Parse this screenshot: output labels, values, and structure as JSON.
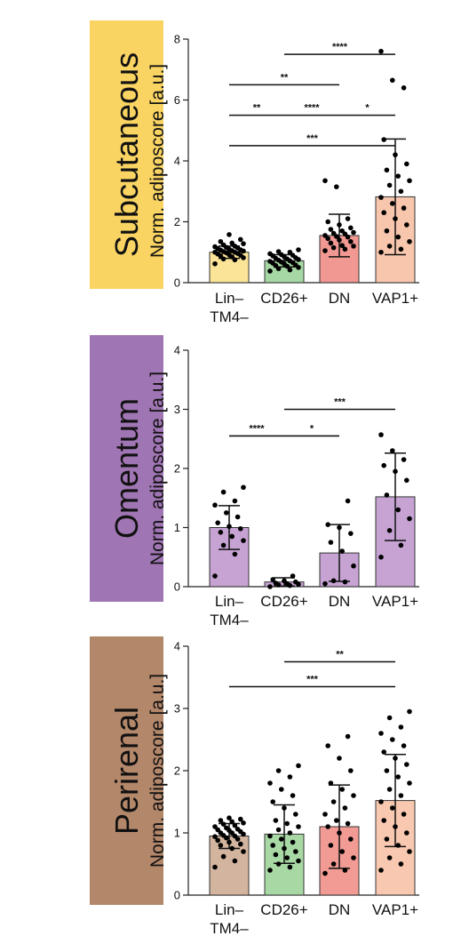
{
  "chart_data": [
    {
      "type": "bar",
      "panel_label": "Subcutaneous",
      "panel_color": "#f9d463",
      "ylabel": "Norm. adiposcore [a.u.]",
      "ylim": [
        0,
        8
      ],
      "yticks": [
        0,
        2,
        4,
        6,
        8
      ],
      "categories": [
        "Lin–\nTM4–",
        "CD26+",
        "DN",
        "VAP1+"
      ],
      "bar_colors": [
        "#fbe497",
        "#a5d8a4",
        "#f19892",
        "#f7c6ad"
      ],
      "values": [
        1.0,
        0.72,
        1.55,
        2.82
      ],
      "errors": [
        0.2,
        0.2,
        0.7,
        1.9
      ],
      "points": [
        [
          0.62,
          0.75,
          0.78,
          0.82,
          0.85,
          0.88,
          0.9,
          0.92,
          0.94,
          0.96,
          0.98,
          1.0,
          1.0,
          1.02,
          1.04,
          1.05,
          1.07,
          1.08,
          1.1,
          1.12,
          1.14,
          1.16,
          1.18,
          1.2,
          1.24,
          1.28,
          1.3,
          1.35,
          1.42,
          1.58
        ],
        [
          0.38,
          0.42,
          0.46,
          0.5,
          0.54,
          0.56,
          0.58,
          0.62,
          0.64,
          0.66,
          0.68,
          0.7,
          0.72,
          0.74,
          0.76,
          0.78,
          0.8,
          0.82,
          0.85,
          0.88,
          0.9,
          0.92,
          0.95,
          1.0,
          1.02,
          1.08
        ],
        [
          1.05,
          1.1,
          1.15,
          1.2,
          1.22,
          1.3,
          1.35,
          1.4,
          1.45,
          1.5,
          1.52,
          1.55,
          1.6,
          1.62,
          1.65,
          1.7,
          1.75,
          1.8,
          1.9,
          2.0,
          2.1,
          3.15,
          3.35
        ],
        [
          1.0,
          1.1,
          1.2,
          1.35,
          1.5,
          1.7,
          1.9,
          2.1,
          2.3,
          2.45,
          2.6,
          2.8,
          3.0,
          3.2,
          3.35,
          3.5,
          3.7,
          3.9,
          4.2,
          4.7,
          6.4,
          6.65,
          7.6
        ]
      ],
      "comparisons": [
        {
          "from": 2,
          "to": 4,
          "label": "****",
          "y": 7.5
        },
        {
          "from": 1,
          "to": 3,
          "label": "**",
          "y": 6.5
        },
        {
          "from": 1,
          "to": 2,
          "label": "**",
          "y": 5.5
        },
        {
          "from": 2,
          "to": 3,
          "label": "****",
          "y": 5.5
        },
        {
          "from": 3,
          "to": 4,
          "label": "*",
          "y": 5.5
        },
        {
          "from": 1,
          "to": 4,
          "label": "***",
          "y": 4.5
        }
      ]
    },
    {
      "type": "bar",
      "panel_label": "Omentum",
      "panel_color": "#a075b4",
      "ylabel": "Norm. adiposcore [a.u.]",
      "ylim": [
        0,
        4
      ],
      "yticks": [
        0,
        1,
        2,
        3,
        4
      ],
      "categories": [
        "Lin–\nTM4–",
        "CD26+",
        "DN",
        "VAP1+"
      ],
      "bar_colors": [
        "#c7a3d4",
        "#c7a3d4",
        "#c7a3d4",
        "#c7a3d4"
      ],
      "values": [
        1.0,
        0.08,
        0.57,
        1.52
      ],
      "errors": [
        0.37,
        0.07,
        0.48,
        0.74
      ],
      "points": [
        [
          0.18,
          0.55,
          0.7,
          0.78,
          0.85,
          0.92,
          0.98,
          1.02,
          1.08,
          1.18,
          1.25,
          1.38,
          1.45,
          1.6,
          1.68
        ],
        [
          0.0,
          0.02,
          0.03,
          0.04,
          0.05,
          0.06,
          0.08,
          0.1,
          0.12,
          0.18
        ],
        [
          0.05,
          0.08,
          0.1,
          0.35,
          0.6,
          0.75,
          0.9,
          1.0,
          1.05,
          1.45
        ],
        [
          0.5,
          0.7,
          0.95,
          1.15,
          1.3,
          1.55,
          1.8,
          1.95,
          2.05,
          2.15,
          2.3,
          2.57
        ]
      ],
      "comparisons": [
        {
          "from": 2,
          "to": 4,
          "label": "***",
          "y": 3.0
        },
        {
          "from": 1,
          "to": 2,
          "label": "****",
          "y": 2.55
        },
        {
          "from": 2,
          "to": 3,
          "label": "*",
          "y": 2.55
        }
      ]
    },
    {
      "type": "bar",
      "panel_label": "Perirenal",
      "panel_color": "#b3876a",
      "ylabel": "Norm. adiposcore [a.u.]",
      "ylim": [
        0,
        4
      ],
      "yticks": [
        0,
        1,
        2,
        3,
        4
      ],
      "categories": [
        "Lin–\nTM4–",
        "CD26+",
        "DN",
        "VAP1+"
      ],
      "bar_colors": [
        "#d3b49e",
        "#a8d8a4",
        "#f19b94",
        "#f8c9b0"
      ],
      "values": [
        0.95,
        0.98,
        1.1,
        1.52
      ],
      "errors": [
        0.2,
        0.47,
        0.67,
        0.74
      ],
      "points": [
        [
          0.45,
          0.55,
          0.62,
          0.7,
          0.75,
          0.8,
          0.82,
          0.85,
          0.88,
          0.9,
          0.92,
          0.94,
          0.95,
          0.96,
          0.98,
          1.0,
          1.0,
          1.02,
          1.04,
          1.05,
          1.06,
          1.08,
          1.1,
          1.12,
          1.14,
          1.16,
          1.18,
          1.2,
          1.22,
          1.24
        ],
        [
          0.4,
          0.45,
          0.5,
          0.55,
          0.6,
          0.65,
          0.7,
          0.75,
          0.8,
          0.85,
          0.9,
          0.95,
          1.0,
          1.05,
          1.1,
          1.15,
          1.2,
          1.3,
          1.4,
          1.5,
          1.6,
          1.7,
          1.8,
          1.9,
          2.0,
          2.08
        ],
        [
          0.35,
          0.4,
          0.5,
          0.6,
          0.7,
          0.8,
          0.9,
          1.0,
          1.1,
          1.15,
          1.2,
          1.3,
          1.4,
          1.5,
          1.6,
          1.7,
          1.8,
          2.0,
          2.2,
          2.4,
          2.55
        ],
        [
          0.4,
          0.5,
          0.6,
          0.7,
          0.8,
          0.9,
          1.0,
          1.1,
          1.2,
          1.3,
          1.4,
          1.5,
          1.6,
          1.7,
          1.8,
          1.9,
          2.0,
          2.1,
          2.2,
          2.3,
          2.4,
          2.5,
          2.6,
          2.7,
          2.85,
          2.95
        ]
      ],
      "comparisons": [
        {
          "from": 2,
          "to": 4,
          "label": "**",
          "y": 3.75
        },
        {
          "from": 1,
          "to": 4,
          "label": "***",
          "y": 3.35
        }
      ]
    }
  ]
}
